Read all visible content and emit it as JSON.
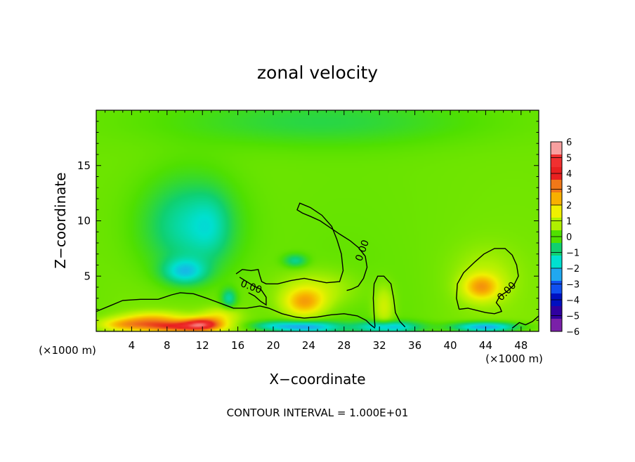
{
  "chart_data": {
    "type": "heatmap",
    "title": "zonal velocity",
    "xlabel": "X−coordinate",
    "ylabel": "Z−coordinate",
    "x_unit_label": "(×1000 m)",
    "y_unit_label": "(×1000 m)",
    "footer": "CONTOUR INTERVAL = 1.000E+01",
    "xlim": [
      0,
      50
    ],
    "ylim": [
      0,
      20
    ],
    "x_ticks": [
      4,
      8,
      12,
      16,
      20,
      24,
      28,
      32,
      36,
      40,
      44,
      48
    ],
    "x_tick_labels": [
      "4",
      "8",
      "12",
      "16",
      "20",
      "24",
      "28",
      "32",
      "36",
      "40",
      "44",
      "48"
    ],
    "y_ticks": [
      5,
      10,
      15
    ],
    "y_tick_labels": [
      "5",
      "10",
      "15"
    ],
    "contour_level": 0.0,
    "contour_labels": [
      {
        "text": "0.00",
        "x": 17.5,
        "z": 4.0,
        "angle": 20
      },
      {
        "text": "0.00",
        "x": 30.1,
        "z": 7.3,
        "angle": -70
      },
      {
        "text": "0.00",
        "x": 46.4,
        "z": 3.6,
        "angle": -45
      }
    ],
    "colorbar": {
      "levels": [
        "6",
        "5",
        "4",
        "3",
        "2",
        "1",
        "0",
        "−1",
        "−2",
        "−3",
        "−4",
        "−5",
        "−6"
      ],
      "colors": [
        "#f8a0a0",
        "#f03030",
        "#e82020",
        "#f07818",
        "#f8b000",
        "#f0f000",
        "#b0f000",
        "#50e000",
        "#10d070",
        "#00e0d0",
        "#20a8f0",
        "#1050f0",
        "#0010c0",
        "#3000a0",
        "#7a20a8"
      ]
    },
    "field_blobs": [
      {
        "x": 6.5,
        "z": 1.0,
        "sx": 2.5,
        "sz": 0.5,
        "v": 2.6
      },
      {
        "x": 9.5,
        "z": 0.4,
        "sx": 3.0,
        "sz": 0.35,
        "v": 3.5
      },
      {
        "x": 12.0,
        "z": 0.7,
        "sx": 1.5,
        "sz": 0.4,
        "v": 3.8
      },
      {
        "x": 3.0,
        "z": 0.6,
        "sx": 2.0,
        "sz": 0.4,
        "v": 2.0
      },
      {
        "x": 14.0,
        "z": 1.4,
        "sx": 1.5,
        "sz": 0.5,
        "v": 1.4
      },
      {
        "x": 23.5,
        "z": 2.6,
        "sx": 1.6,
        "sz": 0.9,
        "v": 2.6
      },
      {
        "x": 25.0,
        "z": 3.8,
        "sx": 3.0,
        "sz": 1.2,
        "v": 1.0
      },
      {
        "x": 32.5,
        "z": 2.2,
        "sx": 0.8,
        "sz": 1.3,
        "v": 1.3
      },
      {
        "x": 43.5,
        "z": 4.0,
        "sx": 1.4,
        "sz": 0.8,
        "v": 2.5
      },
      {
        "x": 44.0,
        "z": 5.0,
        "sx": 2.5,
        "sz": 1.8,
        "v": 0.7
      },
      {
        "x": 10.5,
        "z": 9.5,
        "sx": 3.6,
        "sz": 3.0,
        "v": -2.0
      },
      {
        "x": 10.0,
        "z": 5.4,
        "sx": 1.7,
        "sz": 0.8,
        "v": -2.3
      },
      {
        "x": 13.0,
        "z": 9.5,
        "sx": 1.5,
        "sz": 2.0,
        "v": -0.8
      },
      {
        "x": 15.0,
        "z": 3.0,
        "sx": 0.6,
        "sz": 0.6,
        "v": -1.8
      },
      {
        "x": 22.5,
        "z": 6.4,
        "sx": 0.9,
        "sz": 0.4,
        "v": -1.6
      },
      {
        "x": 24.0,
        "z": 0.4,
        "sx": 2.5,
        "sz": 0.35,
        "v": -3.0
      },
      {
        "x": 33.0,
        "z": 0.4,
        "sx": 2.5,
        "sz": 0.35,
        "v": -2.8
      },
      {
        "x": 44.0,
        "z": 0.4,
        "sx": 2.5,
        "sz": 0.3,
        "v": -3.5
      },
      {
        "x": 20.0,
        "z": 0.5,
        "sx": 2.0,
        "sz": 0.3,
        "v": -1.6
      },
      {
        "x": 25.0,
        "z": 19.0,
        "sx": 12.0,
        "sz": 1.5,
        "v": -0.9
      }
    ],
    "field_background": 0.3,
    "contour_paths": [
      {
        "name": "zero-contour-lower-left",
        "points": [
          [
            0,
            1.8
          ],
          [
            1.5,
            2.3
          ],
          [
            3,
            2.8
          ],
          [
            5,
            2.9
          ],
          [
            7,
            2.9
          ],
          [
            8.5,
            3.3
          ],
          [
            9.5,
            3.5
          ],
          [
            11,
            3.4
          ],
          [
            12.5,
            3.0
          ],
          [
            13.5,
            2.7
          ],
          [
            14.5,
            2.4
          ],
          [
            15.5,
            2.1
          ],
          [
            17,
            2.1
          ],
          [
            18.5,
            2.3
          ],
          [
            19.5,
            2.1
          ],
          [
            21,
            1.6
          ],
          [
            22.5,
            1.3
          ],
          [
            23.5,
            1.2
          ],
          [
            25,
            1.3
          ],
          [
            26.5,
            1.5
          ],
          [
            28,
            1.6
          ],
          [
            29.5,
            1.4
          ],
          [
            30.5,
            1.0
          ],
          [
            31,
            0.6
          ],
          [
            31.5,
            0.3
          ]
        ]
      },
      {
        "name": "zero-contour-hook",
        "points": [
          [
            15.8,
            5.2
          ],
          [
            16.5,
            5.6
          ],
          [
            17.5,
            5.5
          ],
          [
            18.3,
            5.6
          ],
          [
            18.5,
            5.0
          ],
          [
            18.7,
            4.5
          ],
          [
            19.2,
            4.3
          ],
          [
            20.5,
            4.3
          ],
          [
            22,
            4.6
          ],
          [
            23.5,
            4.8
          ],
          [
            26,
            4.4
          ],
          [
            27.5,
            4.5
          ],
          [
            27.9,
            5.5
          ],
          [
            27.7,
            7.0
          ],
          [
            27.2,
            8.3
          ],
          [
            26.6,
            9.5
          ],
          [
            25.5,
            10.5
          ],
          [
            24.2,
            11.2
          ],
          [
            23.0,
            11.6
          ],
          [
            22.7,
            11.0
          ],
          [
            23.3,
            10.7
          ],
          [
            24.2,
            10.4
          ],
          [
            25.3,
            10.0
          ],
          [
            26.4,
            9.4
          ],
          [
            27.5,
            8.8
          ],
          [
            28.7,
            8.2
          ],
          [
            29.6,
            7.6
          ],
          [
            30.4,
            6.8
          ],
          [
            30.6,
            5.8
          ],
          [
            30.2,
            4.8
          ],
          [
            29.6,
            4.1
          ],
          [
            28.8,
            3.8
          ],
          [
            28.3,
            3.7
          ]
        ]
      },
      {
        "name": "zero-contour-small",
        "points": [
          [
            16.2,
            4.9
          ],
          [
            17.0,
            4.5
          ],
          [
            17.8,
            4.1
          ],
          [
            18.6,
            3.8
          ],
          [
            19.2,
            3.1
          ],
          [
            19.2,
            2.4
          ],
          [
            18.6,
            2.7
          ],
          [
            17.9,
            3.2
          ],
          [
            17.2,
            3.5
          ]
        ]
      },
      {
        "name": "zero-contour-column",
        "points": [
          [
            31.5,
            0.4
          ],
          [
            31.4,
            1.5
          ],
          [
            31.3,
            3.0
          ],
          [
            31.4,
            4.3
          ],
          [
            31.8,
            5.0
          ],
          [
            32.5,
            5.0
          ],
          [
            33.3,
            4.3
          ],
          [
            33.6,
            3.0
          ],
          [
            33.8,
            1.7
          ],
          [
            34.3,
            0.9
          ],
          [
            34.9,
            0.4
          ]
        ]
      },
      {
        "name": "zero-contour-right",
        "points": [
          [
            41.0,
            2.0
          ],
          [
            40.7,
            3.0
          ],
          [
            40.8,
            4.3
          ],
          [
            41.5,
            5.3
          ],
          [
            42.8,
            6.3
          ],
          [
            43.8,
            7.0
          ],
          [
            45.0,
            7.5
          ],
          [
            46.2,
            7.5
          ],
          [
            47.0,
            6.9
          ],
          [
            47.5,
            6.0
          ],
          [
            47.7,
            5.0
          ],
          [
            47.2,
            4.2
          ],
          [
            46.4,
            3.6
          ],
          [
            45.6,
            3.2
          ],
          [
            45.2,
            2.6
          ],
          [
            45.6,
            2.2
          ],
          [
            45.8,
            1.8
          ],
          [
            45.0,
            1.6
          ],
          [
            44.0,
            1.7
          ],
          [
            43.0,
            1.9
          ],
          [
            42.0,
            2.1
          ],
          [
            41.0,
            2.0
          ]
        ]
      },
      {
        "name": "zero-contour-bottom-right",
        "points": [
          [
            47.0,
            0.3
          ],
          [
            47.8,
            0.8
          ],
          [
            48.5,
            0.6
          ],
          [
            49.3,
            0.9
          ],
          [
            50.0,
            1.4
          ]
        ]
      }
    ]
  }
}
